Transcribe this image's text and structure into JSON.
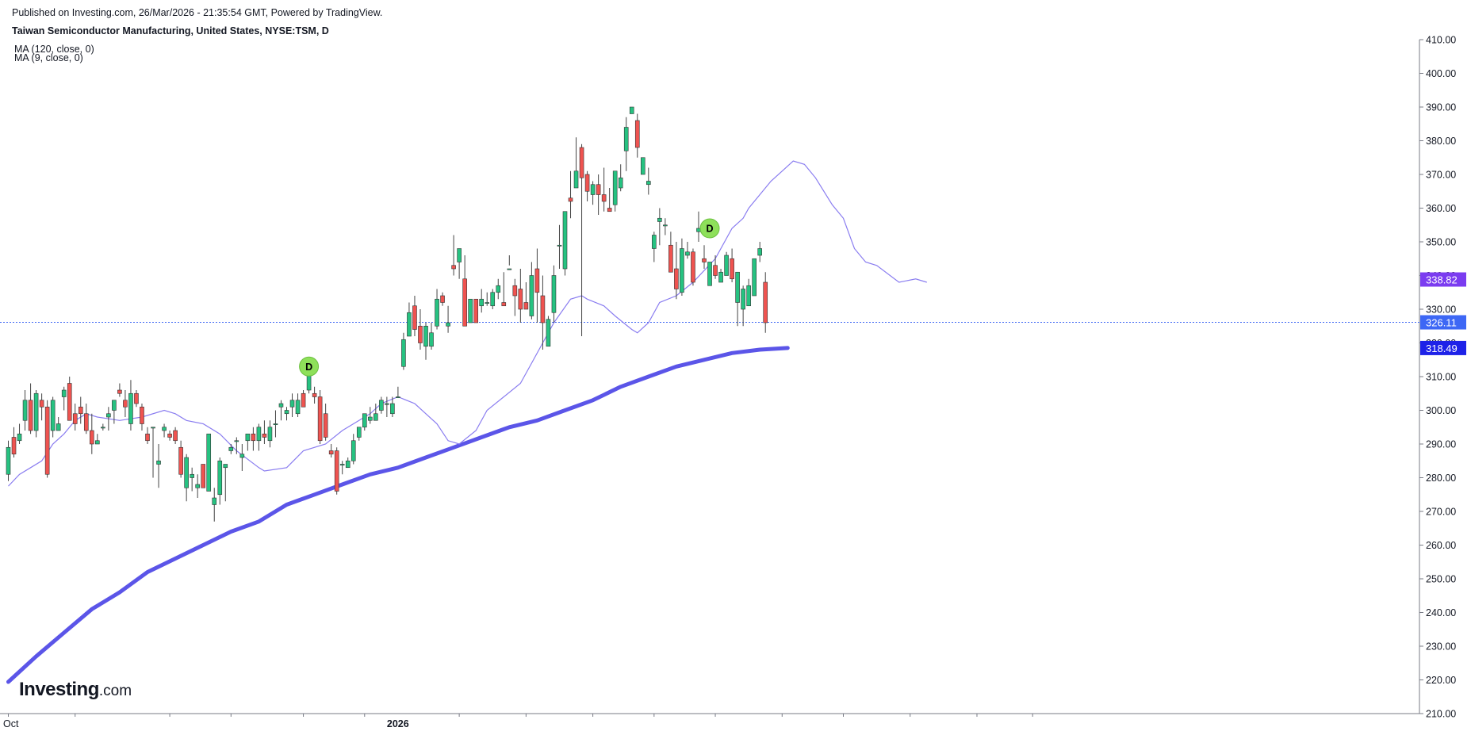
{
  "header": {
    "published": "Published on Investing.com, 26/Mar/2026 - 21:35:54 GMT, Powered by TradingView.",
    "title": "Taiwan Semiconductor Manufacturing, United States, NYSE:TSM, D"
  },
  "legend": [
    "MA (120, close, 0)",
    "MA (9, close, 0)"
  ],
  "logo": {
    "main": "Investing",
    "suffix": ".com"
  },
  "colors": {
    "up": "#26c281",
    "down": "#ef5350",
    "wick": "#444444",
    "ma9": "#8a7df0",
    "ma120": "#5b55e8",
    "tag_ma9": "#7b3cf0",
    "tag_price": "#3d67f5",
    "tag_ma120": "#1e22e8",
    "dividend_marker": "#8ee05a"
  },
  "chart_data": {
    "type": "candlestick",
    "ylim": [
      210,
      410
    ],
    "y_ticks": [
      "210.00",
      "220.00",
      "230.00",
      "240.00",
      "250.00",
      "260.00",
      "270.00",
      "280.00",
      "290.00",
      "300.00",
      "310.00",
      "320.00",
      "330.00",
      "340.00",
      "350.00",
      "360.00",
      "370.00",
      "380.00",
      "390.00",
      "400.00",
      "410.00"
    ],
    "x_labels": [
      {
        "index": 0,
        "label": "Oct"
      },
      {
        "index": 70,
        "label": "2026"
      }
    ],
    "last_price": "326.11",
    "price_tags": [
      {
        "label": "338.82",
        "value": 338.82,
        "key": "tag_ma9"
      },
      {
        "label": "326.11",
        "value": 326.11,
        "key": "tag_price"
      },
      {
        "label": "318.49",
        "value": 318.49,
        "key": "tag_ma120"
      }
    ],
    "dividend_markers": [
      {
        "index": 54,
        "value": 313,
        "label": "D"
      },
      {
        "index": 126,
        "value": 354,
        "label": "D"
      }
    ],
    "candles": [
      [
        281,
        291,
        279,
        289
      ],
      [
        292,
        295,
        286,
        287
      ],
      [
        291,
        296,
        290,
        293
      ],
      [
        297,
        306,
        294,
        303
      ],
      [
        303,
        308,
        293,
        294
      ],
      [
        294,
        306,
        292,
        305
      ],
      [
        303,
        305,
        297,
        301
      ],
      [
        301,
        303,
        280,
        281
      ],
      [
        294,
        304,
        292,
        303
      ],
      [
        294,
        298,
        294,
        296
      ],
      [
        304,
        307,
        300,
        306
      ],
      [
        308,
        310,
        297,
        297
      ],
      [
        299,
        302,
        294,
        296
      ],
      [
        301,
        304,
        296,
        299
      ],
      [
        299,
        302,
        293,
        294
      ],
      [
        294,
        299,
        287,
        290
      ],
      [
        290,
        293,
        290,
        291
      ],
      [
        295,
        296,
        294,
        295
      ],
      [
        298,
        301,
        294,
        299
      ],
      [
        300,
        303,
        296,
        303
      ],
      [
        306,
        308,
        304,
        305
      ],
      [
        303,
        306,
        298,
        301
      ],
      [
        296,
        309,
        294,
        305
      ],
      [
        305,
        306,
        301,
        302
      ],
      [
        301,
        302,
        294,
        296
      ],
      [
        293,
        295,
        290,
        291
      ],
      [
        295,
        295,
        280,
        295
      ],
      [
        284,
        290,
        277,
        285
      ],
      [
        294,
        296,
        292,
        295
      ],
      [
        293,
        294,
        291,
        292
      ],
      [
        294,
        295,
        290,
        291
      ],
      [
        289,
        291,
        280,
        281
      ],
      [
        277,
        287,
        273,
        286
      ],
      [
        280,
        283,
        276,
        281
      ],
      [
        277,
        281,
        274,
        278
      ],
      [
        284,
        284,
        277,
        277
      ],
      [
        276,
        293,
        276,
        293
      ],
      [
        272,
        277,
        267,
        274
      ],
      [
        275,
        286,
        272,
        285
      ],
      [
        283,
        284,
        273,
        284
      ],
      [
        288,
        290,
        287,
        289
      ],
      [
        291,
        292,
        287,
        291
      ],
      [
        286,
        290,
        282,
        287
      ],
      [
        291,
        292,
        288,
        293
      ],
      [
        293,
        295,
        288,
        291
      ],
      [
        291,
        296,
        288,
        295
      ],
      [
        293,
        297,
        290,
        292
      ],
      [
        291,
        297,
        289,
        295
      ],
      [
        296,
        300,
        292,
        296
      ],
      [
        301,
        303,
        297,
        302
      ],
      [
        299,
        301,
        297,
        300
      ],
      [
        301,
        305,
        298,
        303
      ],
      [
        299,
        305,
        298,
        303
      ],
      [
        305,
        306,
        301,
        301
      ],
      [
        306,
        311,
        305,
        311
      ],
      [
        305,
        307,
        302,
        304
      ],
      [
        304,
        306,
        290,
        291
      ],
      [
        299,
        302,
        291,
        292
      ],
      [
        288,
        290,
        286,
        287
      ],
      [
        288,
        289,
        275,
        276
      ],
      [
        284,
        285,
        281,
        284
      ],
      [
        283,
        286,
        283,
        285
      ],
      [
        285,
        293,
        284,
        291
      ],
      [
        292,
        295,
        291,
        295
      ],
      [
        295,
        299,
        294,
        299
      ],
      [
        297,
        301,
        296,
        298
      ],
      [
        297,
        302,
        297,
        299
      ],
      [
        300,
        304,
        299,
        303
      ],
      [
        302,
        304,
        298,
        302
      ],
      [
        299,
        304,
        298,
        302
      ],
      [
        304,
        307,
        304,
        304
      ],
      [
        313,
        323,
        312,
        321
      ],
      [
        322,
        332,
        324,
        329
      ],
      [
        331,
        334,
        322,
        324
      ],
      [
        325,
        330,
        318,
        320
      ],
      [
        319,
        326,
        315,
        325
      ],
      [
        319,
        326,
        318,
        323
      ],
      [
        325,
        336,
        324,
        333
      ],
      [
        334,
        335,
        331,
        332
      ],
      [
        325,
        331,
        323,
        326
      ],
      [
        343,
        352,
        340,
        342
      ],
      [
        344,
        347,
        339,
        348
      ],
      [
        339,
        346,
        326,
        325
      ],
      [
        326,
        333,
        327,
        333
      ],
      [
        333,
        333,
        326,
        326
      ],
      [
        331,
        336,
        329,
        333
      ],
      [
        332,
        335,
        331,
        332
      ],
      [
        331,
        336,
        330,
        335
      ],
      [
        335,
        339,
        333,
        337
      ],
      [
        332,
        341,
        332,
        331
      ],
      [
        342,
        346,
        343,
        342
      ],
      [
        337,
        339,
        328,
        334
      ],
      [
        336,
        342,
        326,
        330
      ],
      [
        332,
        338,
        330,
        330
      ],
      [
        328,
        344,
        327,
        340
      ],
      [
        342,
        348,
        326,
        335
      ],
      [
        334,
        340,
        318,
        326
      ],
      [
        319,
        328,
        319,
        327
      ],
      [
        329,
        343,
        326,
        340
      ],
      [
        349,
        355,
        342,
        349
      ],
      [
        342,
        359,
        340,
        359
      ],
      [
        363,
        371,
        357,
        362
      ],
      [
        366,
        381,
        366,
        371
      ],
      [
        378,
        379,
        322,
        369
      ],
      [
        370,
        371,
        362,
        365
      ],
      [
        364,
        368,
        361,
        367
      ],
      [
        367,
        370,
        358,
        364
      ],
      [
        364,
        372,
        359,
        362
      ],
      [
        360,
        366,
        359,
        359
      ],
      [
        361,
        370,
        359,
        371
      ],
      [
        366,
        373,
        365,
        369
      ],
      [
        377,
        387,
        371,
        384
      ],
      [
        388,
        390,
        388,
        390
      ],
      [
        386,
        388,
        375,
        378
      ],
      [
        370,
        374,
        371,
        375
      ],
      [
        367,
        372,
        364,
        368
      ],
      [
        348,
        353,
        344,
        352
      ],
      [
        356,
        360,
        349,
        357
      ],
      [
        355,
        357,
        352,
        355
      ],
      [
        349,
        353,
        341,
        341
      ],
      [
        342,
        350,
        333,
        336
      ],
      [
        335,
        351,
        334,
        348
      ],
      [
        346,
        350,
        345,
        347
      ],
      [
        347,
        348,
        337,
        338
      ],
      [
        353,
        359,
        350,
        354
      ],
      [
        345,
        349,
        342,
        344
      ],
      [
        337,
        344,
        337,
        344
      ],
      [
        343,
        346,
        339,
        340
      ],
      [
        338,
        342,
        340,
        341
      ],
      [
        340,
        347,
        342,
        346
      ],
      [
        345,
        348,
        338,
        339
      ],
      [
        332,
        340,
        325,
        341
      ],
      [
        330,
        337,
        325,
        336
      ],
      [
        331,
        339,
        331,
        337
      ],
      [
        334,
        345,
        335,
        345
      ],
      [
        346,
        350,
        344,
        348
      ],
      [
        338,
        341,
        323,
        326
      ]
    ],
    "ma9": [
      [
        0,
        277.5
      ],
      [
        2,
        281
      ],
      [
        4,
        283
      ],
      [
        6,
        285
      ],
      [
        8,
        290
      ],
      [
        10,
        293
      ],
      [
        12,
        297
      ],
      [
        14,
        299
      ],
      [
        16,
        298
      ],
      [
        20,
        297
      ],
      [
        24,
        298
      ],
      [
        28,
        300
      ],
      [
        30,
        299
      ],
      [
        32,
        297
      ],
      [
        35,
        296
      ],
      [
        38,
        293
      ],
      [
        41,
        288
      ],
      [
        45,
        283
      ],
      [
        46,
        282
      ],
      [
        50,
        283
      ],
      [
        53,
        288
      ],
      [
        57,
        290
      ],
      [
        60,
        294
      ],
      [
        65,
        299
      ],
      [
        67,
        302
      ],
      [
        70,
        304
      ],
      [
        73,
        302
      ],
      [
        75,
        299
      ],
      [
        77,
        296
      ],
      [
        79,
        291
      ],
      [
        81,
        290
      ],
      [
        84,
        294
      ],
      [
        86,
        300
      ],
      [
        89,
        304
      ],
      [
        92,
        308
      ],
      [
        94,
        314
      ],
      [
        96,
        320
      ],
      [
        98,
        326
      ],
      [
        101,
        333
      ],
      [
        103,
        334
      ],
      [
        104,
        333
      ],
      [
        107,
        331
      ],
      [
        109,
        328
      ],
      [
        112,
        324
      ],
      [
        113,
        323
      ],
      [
        115,
        326
      ],
      [
        117,
        332
      ],
      [
        120,
        334
      ],
      [
        123,
        338
      ],
      [
        127,
        345
      ],
      [
        130,
        354
      ],
      [
        132,
        357
      ],
      [
        133,
        360
      ],
      [
        137,
        368
      ],
      [
        139,
        371
      ],
      [
        141,
        374
      ],
      [
        143,
        373
      ],
      [
        145,
        369
      ],
      [
        148,
        361
      ],
      [
        150,
        357
      ],
      [
        152,
        348
      ],
      [
        154,
        344
      ],
      [
        156,
        343
      ],
      [
        160,
        338
      ],
      [
        163,
        339
      ],
      [
        165,
        338
      ]
    ],
    "ma120": [
      [
        0,
        219.4
      ],
      [
        5,
        227
      ],
      [
        10,
        234
      ],
      [
        15,
        241
      ],
      [
        20,
        246
      ],
      [
        25,
        252
      ],
      [
        30,
        256
      ],
      [
        35,
        260
      ],
      [
        40,
        264
      ],
      [
        45,
        267
      ],
      [
        50,
        272
      ],
      [
        55,
        275
      ],
      [
        60,
        278
      ],
      [
        65,
        281
      ],
      [
        70,
        283
      ],
      [
        75,
        286
      ],
      [
        80,
        289
      ],
      [
        85,
        292
      ],
      [
        90,
        295
      ],
      [
        95,
        297
      ],
      [
        100,
        300
      ],
      [
        105,
        303
      ],
      [
        110,
        307
      ],
      [
        115,
        310
      ],
      [
        120,
        313
      ],
      [
        125,
        315
      ],
      [
        130,
        317
      ],
      [
        135,
        318
      ],
      [
        140,
        318.49
      ]
    ]
  }
}
